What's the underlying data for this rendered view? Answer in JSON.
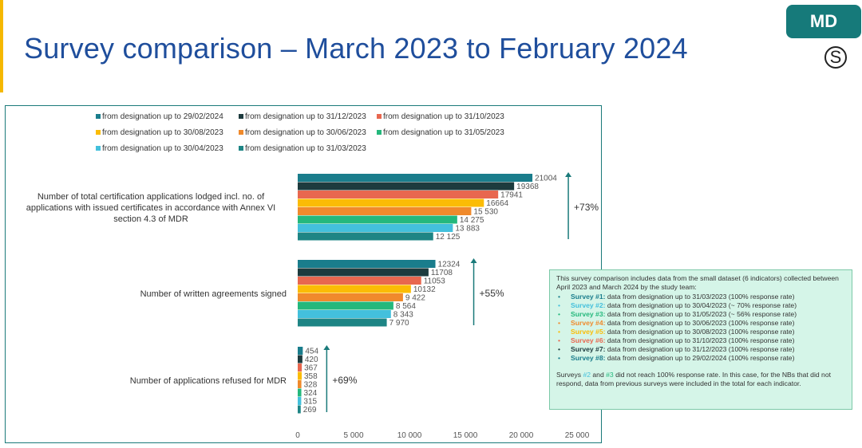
{
  "header": {
    "title": "Survey comparison – March 2023 to February 2024",
    "badge": "MD",
    "s_symbol": "S"
  },
  "chart_data": {
    "type": "bar",
    "orientation": "horizontal",
    "categories": [
      "Number of total certification applications lodged incl. no. of applications with issued certificates  in accordance with Annex VI section 4.3 of MDR",
      "Number of written agreements signed",
      "Number of applications refused for MDR"
    ],
    "category_lines": [
      [
        "Number of total certification applications lodged incl. no. of",
        "applications with issued certificates  in accordance with Annex VI",
        "section 4.3 of MDR"
      ],
      [
        "Number of written agreements signed"
      ],
      [
        "Number of applications refused for MDR"
      ]
    ],
    "series": [
      {
        "name": "from designation up to 29/02/2024",
        "color": "#1a7d8c",
        "values": [
          21004,
          12324,
          454
        ],
        "labels": [
          "21004",
          "12324",
          "454"
        ]
      },
      {
        "name": "from designation up to 31/12/2023",
        "color": "#1d3b3e",
        "values": [
          19368,
          11708,
          420
        ],
        "labels": [
          "19368",
          "11708",
          "420"
        ]
      },
      {
        "name": "from designation up to 31/10/2023",
        "color": "#e8674f",
        "values": [
          17941,
          11053,
          367
        ],
        "labels": [
          "17941",
          "11053",
          "367"
        ]
      },
      {
        "name": "from designation up to 30/08/2023",
        "color": "#fbbc05",
        "values": [
          16664,
          10132,
          358
        ],
        "labels": [
          "16664",
          "10132",
          "358"
        ]
      },
      {
        "name": "from designation up to 30/06/2023",
        "color": "#f08a2c",
        "values": [
          15530,
          9422,
          328
        ],
        "labels": [
          "15 530",
          "9 422",
          "328"
        ]
      },
      {
        "name": "from designation up to 31/05/2023",
        "color": "#24b87c",
        "values": [
          14275,
          8564,
          324
        ],
        "labels": [
          "14 275",
          "8 564",
          "324"
        ]
      },
      {
        "name": "from designation up to 30/04/2023",
        "color": "#43c0dc",
        "values": [
          13883,
          8343,
          315
        ],
        "labels": [
          "13 883",
          "8 343",
          "315"
        ]
      },
      {
        "name": "from designation up to 31/03/2023",
        "color": "#1e8585",
        "values": [
          12125,
          7970,
          269
        ],
        "labels": [
          "12 125",
          "7 970",
          "269"
        ]
      }
    ],
    "growth": [
      "+73%",
      "+55%",
      "+69%"
    ],
    "x_ticks": [
      0,
      5000,
      10000,
      15000,
      20000,
      25000
    ],
    "x_tick_labels": [
      "0",
      "5 000",
      "10 000",
      "15 000",
      "20 000",
      "25 000"
    ],
    "xlim": [
      0,
      25000
    ],
    "legend_position": "top",
    "grid": false,
    "value_color": "#555555",
    "arrow_color": "#1a7a7a"
  },
  "note": {
    "intro": "This survey comparison includes data from the small dataset (6 indicators) collected between April 2023 and March 2024 by the study team:",
    "bullet": "•",
    "surveys": [
      {
        "name": "Survey #1:",
        "text": " data from designation up to 31/03/2023 (100% response rate)",
        "color": "#1a7d8c"
      },
      {
        "name": "Survey #2:",
        "text": " data from designation up to 30/04/2023 (~ 70% response rate)",
        "color": "#43c0dc"
      },
      {
        "name": "Survey #3:",
        "text": " data from designation up to 31/05/2023 (~ 56% response rate)",
        "color": "#24b87c"
      },
      {
        "name": "Survey #4:",
        "text": " data from designation up to 30/06/2023 (100% response rate)",
        "color": "#f08a2c"
      },
      {
        "name": "Survey #5:",
        "text": " data from designation up to 30/08/2023 (100% response rate)",
        "color": "#fbbc05"
      },
      {
        "name": "Survey #6:",
        "text": " data from designation up to 31/10/2023 (100% response rate)",
        "color": "#e8674f"
      },
      {
        "name": "Survey #7:",
        "text": " data from designation up to 31/12/2023 (100% response rate)",
        "color": "#1d3b3e"
      },
      {
        "name": "Survey #8:",
        "text": " data from designation up to 29/02/2024 (100% response rate)",
        "color": "#1a7d8c"
      }
    ],
    "footer_parts": {
      "a": "Surveys ",
      "b": "#2",
      "c": " and ",
      "d": "#3",
      "e": " did not reach 100% response rate. In this case, for the NBs that did not respond, data from previous surveys were included in the total for each indicator."
    },
    "footer_b_color": "#43c0dc",
    "footer_d_color": "#24b87c"
  }
}
